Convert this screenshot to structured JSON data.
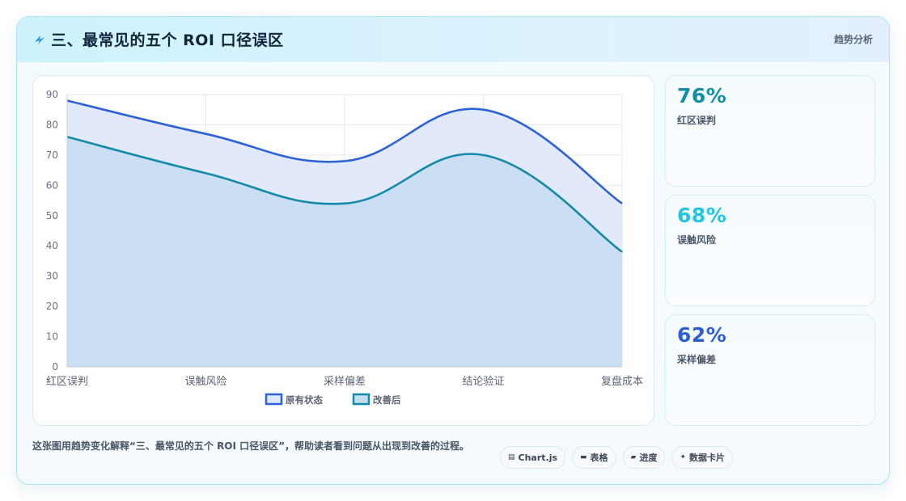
{
  "header": {
    "title": "三、最常见的五个 ROI 口径误区",
    "tag": "趋势分析",
    "bolt_color": "#2a8fd8"
  },
  "chart_data": {
    "type": "area",
    "categories": [
      "红区误判",
      "误触风险",
      "采样偏差",
      "结论验证",
      "复盘成本"
    ],
    "series": [
      {
        "name": "原有状态",
        "values": [
          88,
          77,
          68,
          85,
          54
        ],
        "color": "#2d62d6",
        "fill": "#dfe8fb"
      },
      {
        "name": "改善后",
        "values": [
          76,
          64,
          54,
          70,
          38
        ],
        "color": "#1489a8",
        "fill": "#c5ddf1"
      }
    ],
    "ylim": [
      0,
      90
    ],
    "yticks": [
      0,
      10,
      20,
      30,
      40,
      50,
      60,
      70,
      80,
      90
    ],
    "grid": true,
    "legend_position": "bottom",
    "xlabel": "",
    "ylabel": ""
  },
  "stats": [
    {
      "value": "76%",
      "label": "红区误判",
      "color": "#148ea6"
    },
    {
      "value": "68%",
      "label": "误触风险",
      "color": "#22c4e0"
    },
    {
      "value": "62%",
      "label": "采样偏差",
      "color": "#2d5fd0"
    }
  ],
  "footer": {
    "text": "这张图用趋势变化解释“三、最常见的五个 ROI 口径误区”，帮助读者看到问题从出现到改善的过程。",
    "chips": [
      {
        "icon": "chart-icon",
        "glyph": "▤",
        "label": "Chart.js"
      },
      {
        "icon": "table-icon",
        "glyph": "▬",
        "label": "表格"
      },
      {
        "icon": "progress-icon",
        "glyph": "▰",
        "label": "进度"
      },
      {
        "icon": "sparkle-icon",
        "glyph": "✦",
        "label": "数据卡片"
      }
    ]
  }
}
